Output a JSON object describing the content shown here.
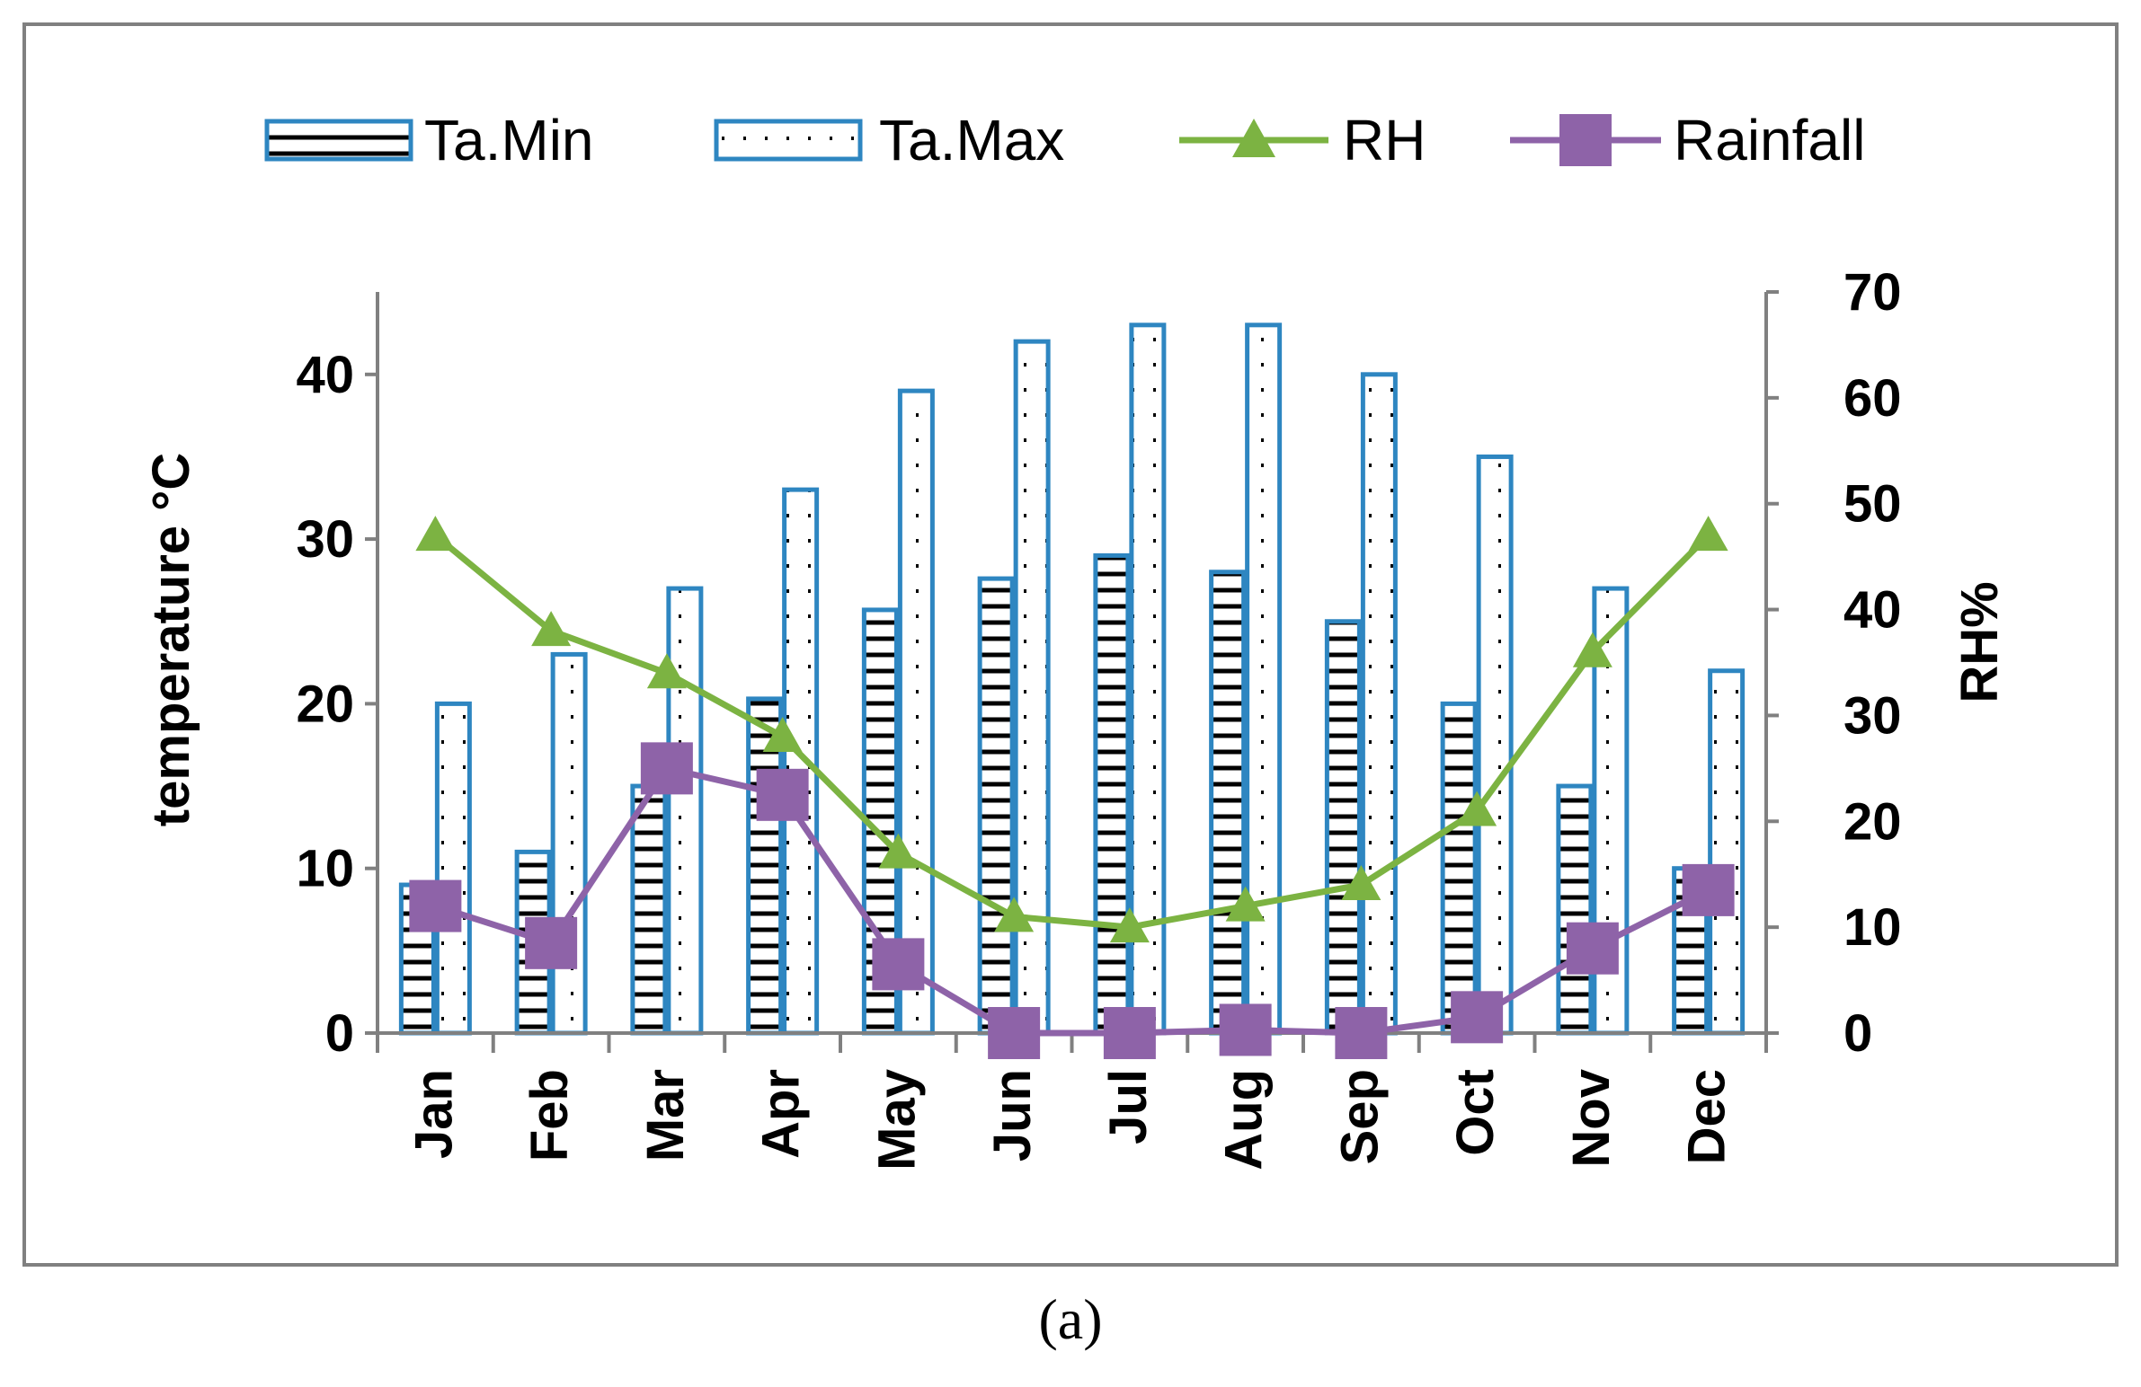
{
  "chart_data": {
    "type": "bar",
    "categories": [
      "Jan",
      "Feb",
      "Mar",
      "Apr",
      "May",
      "Jun",
      "Jul",
      "Aug",
      "Sep",
      "Oct",
      "Nov",
      "Dec"
    ],
    "series": [
      {
        "name": "Ta.Min",
        "type": "bar",
        "axis": "left",
        "values": [
          9,
          11,
          15,
          20.3,
          25.7,
          27.6,
          29,
          28,
          25,
          20,
          15,
          10
        ]
      },
      {
        "name": "Ta.Max",
        "type": "bar",
        "axis": "left",
        "values": [
          20,
          23,
          27,
          33,
          39,
          42,
          43,
          43,
          40,
          35,
          27,
          22
        ]
      },
      {
        "name": "RH",
        "type": "line",
        "axis": "right",
        "values": [
          47,
          38,
          34,
          28,
          17,
          11,
          10,
          12,
          14,
          21,
          36,
          47
        ]
      },
      {
        "name": "Rainfall",
        "type": "line",
        "axis": "right",
        "values": [
          12,
          8.5,
          25,
          22.5,
          6.5,
          0,
          0,
          0.3,
          0,
          1.5,
          8,
          13.5
        ]
      }
    ],
    "yaxis_left": {
      "label": "temperature  °C",
      "min": 0,
      "max": 45,
      "ticks": [
        "0",
        "10",
        "20",
        "30",
        "40"
      ]
    },
    "yaxis_right": {
      "label": "RH%",
      "min": 0,
      "max": 70,
      "ticks": [
        "0",
        "10",
        "20",
        "30",
        "40",
        "50",
        "60",
        "70"
      ]
    },
    "legend": {
      "position": "top",
      "items": [
        "Ta.Min",
        "Ta.Max",
        "RH",
        "Rainfall"
      ]
    },
    "caption": "(a)"
  },
  "colors": {
    "bar_border": "#2E86C1",
    "rh_line": "#7CB342",
    "rain_line": "#8E63A8",
    "axis": "#808080",
    "frame": "#808080"
  }
}
